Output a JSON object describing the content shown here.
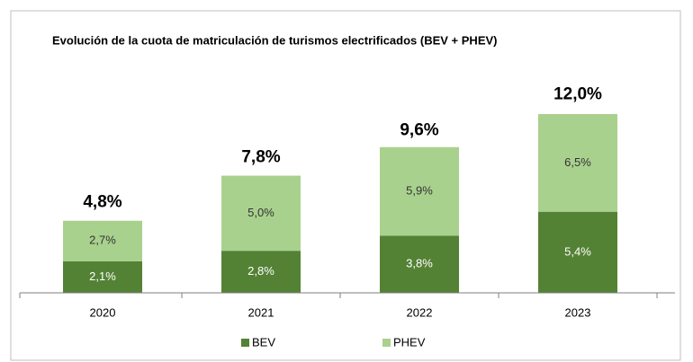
{
  "chart_data": {
    "type": "stacked_bar",
    "title": "Evolución de la cuota de matriculación de turismos electrificados (BEV + PHEV)",
    "categories": [
      "2020",
      "2021",
      "2022",
      "2023"
    ],
    "series": [
      {
        "name": "BEV",
        "color": "#548235",
        "values": [
          2.1,
          2.8,
          3.8,
          5.4
        ],
        "value_labels": [
          "2,1%",
          "2,8%",
          "3,8%",
          "5,4%"
        ]
      },
      {
        "name": "PHEV",
        "color": "#a9d18e",
        "values": [
          2.7,
          5.0,
          5.9,
          6.5
        ],
        "value_labels": [
          "2,7%",
          "5,0%",
          "5,9%",
          "6,5%"
        ]
      }
    ],
    "totals": [
      4.8,
      7.8,
      9.6,
      12.0
    ],
    "total_labels": [
      "4,8%",
      "7,8%",
      "9,6%",
      "12,0%"
    ],
    "legend": "bottom"
  }
}
